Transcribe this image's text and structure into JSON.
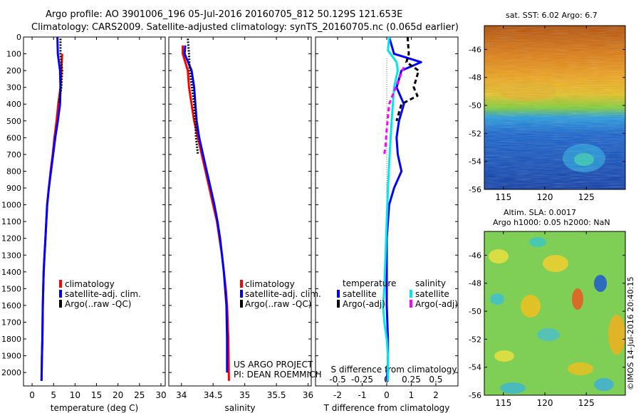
{
  "header": {
    "line1": "Argo profile: AO 3901006_196 05-Jul-2016 20160705_812 50.129S 121.653E",
    "line2": "Climatology: CARS2009. Satellite-adjusted climatology: synTS_20160705.nc (0.065d earlier)"
  },
  "colors": {
    "climatology": "#ff0000",
    "satellite": "#0000ff",
    "argo": "#000000",
    "salinity_sat": "#00e5ee",
    "salinity_argo": "#ff00ff"
  },
  "depth_ticks": [
    "0",
    "100",
    "200",
    "300",
    "400",
    "500",
    "600",
    "700",
    "800",
    "900",
    "1000",
    "1100",
    "1200",
    "1300",
    "1400",
    "1500",
    "1600",
    "1700",
    "1800",
    "1900",
    "2000"
  ],
  "legend_left": [
    "climatology",
    "satellite-adj. clim.",
    "Argo(..raw -QC)"
  ],
  "credit": {
    "line1": "US ARGO PROJECT",
    "line2": "PI: DEAN ROEMMICH"
  },
  "diff_legend": {
    "temperature_title": "temperature",
    "salinity_title": "salinity",
    "satellite": "satellite",
    "argo_adj": "Argo(-adj)"
  },
  "maps": {
    "sst_title": "sat. SST: 6.02 Argo: 6.7",
    "sla_title1": "Altim. SLA: 0.0017",
    "sla_title2": "Argo h1000: 0.05 h2000: NaN",
    "lat_ticks": [
      "-46",
      "-48",
      "-50",
      "-52",
      "-54",
      "-56"
    ],
    "lon_ticks": [
      "115",
      "120",
      "125"
    ],
    "imos_label": "©IMOS 14-Jul-2016 20:40:15"
  },
  "chart_data": [
    {
      "type": "line",
      "xlabel": "temperature (deg C)",
      "xticks": [
        0,
        5,
        10,
        15,
        20,
        25,
        30
      ],
      "xlim": [
        -2,
        31
      ],
      "ylim": [
        2080,
        0
      ],
      "series": [
        {
          "name": "climatology",
          "color": "#ff0000",
          "x": [
            7.0,
            6.8,
            6.6,
            6.1,
            5.7,
            5.2,
            4.8,
            4.3,
            3.9,
            3.5,
            3.3,
            3.1,
            2.9,
            2.7,
            2.6,
            2.5,
            2.4,
            2.3,
            2.2
          ],
          "y": [
            100,
            200,
            300,
            400,
            500,
            600,
            700,
            800,
            900,
            1000,
            1100,
            1200,
            1300,
            1400,
            1500,
            1600,
            1800,
            1900,
            2050
          ]
        },
        {
          "name": "satellite-adj. clim.",
          "color": "#0000ff",
          "x": [
            5.9,
            6.0,
            6.5,
            6.6,
            6.5,
            6.0,
            5.4,
            4.9,
            4.4,
            3.9,
            3.5,
            3.3,
            3.1,
            2.9,
            2.7,
            2.6,
            2.5,
            2.4,
            2.3,
            2.2
          ],
          "y": [
            0,
            100,
            200,
            300,
            400,
            500,
            600,
            700,
            800,
            900,
            1000,
            1100,
            1200,
            1300,
            1400,
            1500,
            1600,
            1800,
            1900,
            2050
          ]
        },
        {
          "name": "Argo(..raw -QC)",
          "color": "#000000",
          "dash": "2,2",
          "x": [
            6.6,
            6.6,
            7.0,
            6.8,
            6.5,
            6.2
          ],
          "y": [
            10,
            100,
            200,
            300,
            350,
            400
          ]
        }
      ]
    },
    {
      "type": "line",
      "xlabel": "salinity",
      "xticks": [
        34,
        34.5,
        35,
        35.5,
        36
      ],
      "xlim": [
        33.8,
        36.05
      ],
      "ylim": [
        2080,
        0
      ],
      "series": [
        {
          "name": "climatology",
          "color": "#ff0000",
          "x": [
            34.02,
            34.02,
            34.1,
            34.12,
            34.16,
            34.2,
            34.26,
            34.32,
            34.38,
            34.44,
            34.5,
            34.56,
            34.6,
            34.64,
            34.67,
            34.7,
            34.72,
            34.74,
            34.75
          ],
          "y": [
            50,
            100,
            200,
            300,
            400,
            500,
            600,
            700,
            800,
            900,
            1000,
            1100,
            1200,
            1300,
            1400,
            1500,
            1600,
            1800,
            2050
          ]
        },
        {
          "name": "satellite-adj. clim.",
          "color": "#0000ff",
          "x": [
            34.06,
            34.05,
            34.16,
            34.2,
            34.22,
            34.24,
            34.28,
            34.34,
            34.4,
            34.46,
            34.52,
            34.57,
            34.61,
            34.64,
            34.67,
            34.69,
            34.71,
            34.72,
            34.72
          ],
          "y": [
            50,
            100,
            200,
            300,
            400,
            500,
            600,
            700,
            800,
            900,
            1000,
            1100,
            1200,
            1300,
            1400,
            1500,
            1600,
            1800,
            2000
          ]
        },
        {
          "name": "Argo(..raw -QC)",
          "color": "#000000",
          "dash": "2,2",
          "x": [
            34.1,
            34.12,
            34.13,
            34.2,
            34.22,
            34.23,
            34.26
          ],
          "y": [
            10,
            100,
            200,
            400,
            500,
            600,
            700
          ]
        }
      ]
    },
    {
      "type": "line",
      "xlabel": "T difference from climatology",
      "xlabel_top": "S difference from climatology",
      "xticks": [
        -2,
        -1,
        0,
        1,
        2
      ],
      "xticks_top": [
        "-0.5",
        "-0.25",
        "0",
        "0.25",
        "0.5"
      ],
      "xlim": [
        -2.9,
        2.9
      ],
      "ylim": [
        2080,
        0
      ],
      "series": [
        {
          "name": "satellite",
          "group": "temperature",
          "color": "#0000ff",
          "x": [
            0.1,
            0.3,
            1.4,
            0.6,
            0.4,
            0.7,
            0.5,
            0.4,
            0.45,
            0.6,
            0.3,
            0.1,
            0.05,
            0.0,
            0.0,
            0.0,
            0.05,
            0.05,
            0.0
          ],
          "y": [
            0,
            100,
            150,
            200,
            300,
            400,
            500,
            600,
            700,
            800,
            900,
            1000,
            1100,
            1200,
            1400,
            1600,
            1800,
            1950,
            2050
          ]
        },
        {
          "name": "Argo(-adj)",
          "group": "temperature",
          "color": "#000000",
          "dash": "6,4",
          "x": [
            0.85,
            0.9,
            0.8,
            1.3,
            1.1,
            1.25,
            0.6,
            0.5,
            0.4
          ],
          "y": [
            0,
            100,
            150,
            200,
            300,
            350,
            400,
            450,
            500
          ]
        },
        {
          "name": "satellite",
          "group": "salinity",
          "color": "#00e5ee",
          "x": [
            0.1,
            0.05,
            0.4,
            0.45,
            0.3,
            0.2,
            0.12,
            0.05,
            0.0,
            -0.05,
            -0.1,
            -0.15,
            -0.1,
            0.0,
            0.05,
            0.05
          ],
          "y": [
            0,
            80,
            150,
            200,
            300,
            500,
            700,
            900,
            1100,
            1300,
            1500,
            1600,
            1700,
            1800,
            1900,
            2050
          ]
        },
        {
          "name": "Argo(-adj)",
          "group": "salinity",
          "color": "#ff00ff",
          "dash": "6,4",
          "x": [
            0.7,
            0.5,
            0.1,
            0.0,
            -0.05,
            -0.1
          ],
          "y": [
            180,
            250,
            400,
            550,
            650,
            700
          ]
        }
      ]
    }
  ]
}
